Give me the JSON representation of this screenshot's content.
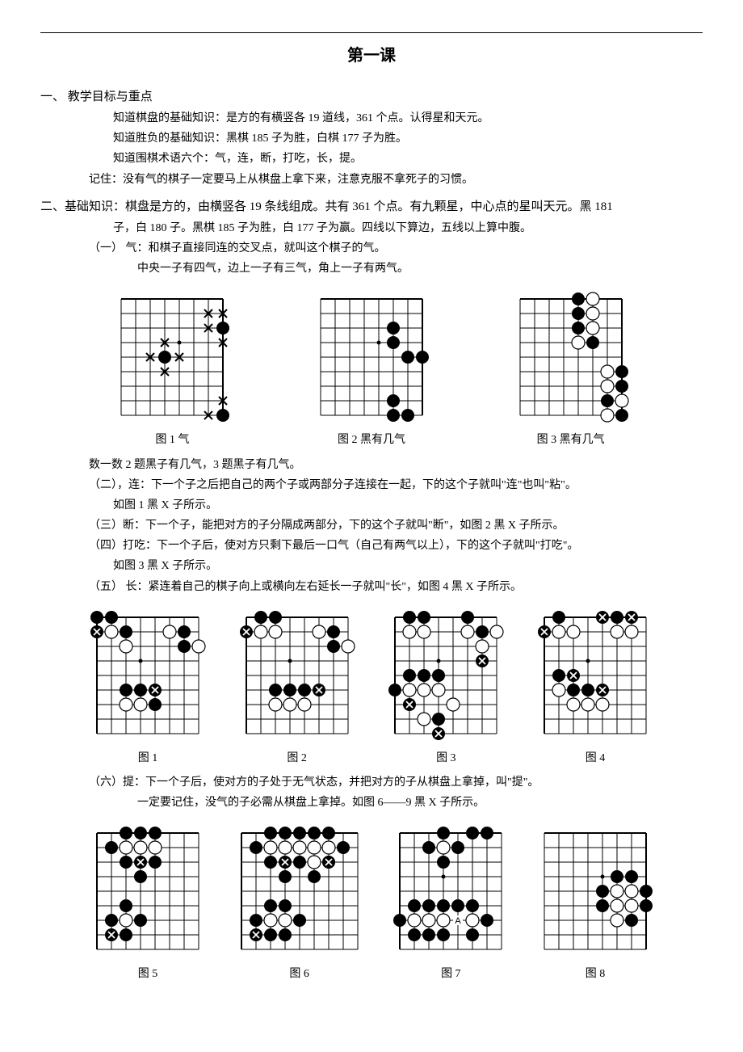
{
  "title": "第一课",
  "sec1": {
    "heading": "一、 教学目标与重点",
    "lines": [
      "知道棋盘的基础知识：是方的有横竖各 19 道线，361 个点。认得星和天元。",
      "知道胜负的基础知识：黑棋 185 子为胜，白棋 177 子为胜。",
      "知道围棋术语六个：气，连，断，打吃，长，提。",
      "记住：没有气的棋子一定要马上从棋盘上拿下来，注意克服不拿死子的习惯。"
    ]
  },
  "sec2": {
    "heading": "二、基础知识：棋盘是方的，由横竖各 19 条线组成。共有 361 个点。有九颗星，中心点的星叫天元。黑 181",
    "heading_cont": "子，白 180 子。黑棋 185 子为胜，白 177 子为赢。四线以下算边，五线以上算中腹。",
    "items": {
      "i1": "（一） 气：和棋子直接同连的交叉点，就叫这个棋子的气。",
      "i1b": "中央一子有四气，边上一子有三气，角上一子有两气。",
      "note1": "数一数 2 题黑子有几气，3 题黑子有几气。",
      "i2": "（二），连：下一个子之后把自己的两个子或两部分子连接在一起，下的这个子就叫\"连\"也叫\"粘\"。",
      "i2b": "如图 1 黑 X 子所示。",
      "i3": "（三）断：下一个子，能把对方的子分隔成两部分，下的这个子就叫\"断\"，如图 2 黑 X 子所示。",
      "i4": "（四）打吃：下一个子后，使对方只剩下最后一口气（自己有两气以上），下的这个子就叫\"打吃\"。",
      "i4b": "如图 3 黑 X 子所示。",
      "i5": "（五） 长：紧连着自己的棋子向上或横向左右延长一子就叫\"长\"，如图 4 黑 X 子所示。",
      "i6": "（六）提：下一个子后，使对方的子处于无气状态，并把对方的子从棋盘上拿掉，叫\"提\"。",
      "i6b": "一定要记住，没气的子必需从棋盘上拿掉。如图 6——9 黑 X 子所示。"
    }
  },
  "row1_captions": [
    "图 1 气",
    "图 2 黑有几气",
    "图 3 黑有几气"
  ],
  "row2_captions": [
    "图 1",
    "图 2",
    "图 3",
    "图 4"
  ],
  "row3_captions": [
    "图 5",
    "图 6",
    "图 7",
    "图 8"
  ],
  "boards": {
    "cell": 18,
    "stone_r": 8,
    "row1": [
      {
        "cols": 8,
        "rows": 9,
        "topEdge": true,
        "rightEdge": true,
        "star": [
          [
            4,
            3
          ]
        ],
        "black": [
          [
            7,
            2
          ],
          [
            3,
            4
          ],
          [
            7,
            8
          ]
        ],
        "white": [],
        "x": [
          [
            6,
            1
          ],
          [
            7,
            1
          ],
          [
            6,
            2
          ],
          [
            2,
            4
          ],
          [
            4,
            4
          ],
          [
            3,
            3
          ],
          [
            7,
            3
          ],
          [
            3,
            5
          ],
          [
            6,
            8
          ],
          [
            7,
            7
          ]
        ],
        "label": []
      },
      {
        "cols": 8,
        "rows": 9,
        "topEdge": true,
        "rightEdge": true,
        "star": [
          [
            4,
            3
          ]
        ],
        "black": [
          [
            5,
            2
          ],
          [
            5,
            3
          ],
          [
            6,
            4
          ],
          [
            7,
            4
          ],
          [
            5,
            8
          ],
          [
            6,
            8
          ],
          [
            5,
            7
          ]
        ],
        "white": [],
        "x": [],
        "label": []
      },
      {
        "cols": 8,
        "rows": 9,
        "topEdge": true,
        "rightEdge": true,
        "star": [
          [
            4,
            3
          ]
        ],
        "black": [
          [
            4,
            0
          ],
          [
            4,
            1
          ],
          [
            4,
            2
          ],
          [
            5,
            3
          ],
          [
            7,
            5
          ],
          [
            7,
            6
          ],
          [
            6,
            7
          ],
          [
            7,
            8
          ]
        ],
        "white": [
          [
            5,
            0
          ],
          [
            5,
            1
          ],
          [
            5,
            2
          ],
          [
            4,
            3
          ],
          [
            6,
            5
          ],
          [
            6,
            6
          ],
          [
            7,
            7
          ],
          [
            6,
            8
          ]
        ],
        "x": [],
        "label": []
      }
    ],
    "row2": [
      {
        "cols": 8,
        "rows": 9,
        "topEdge": true,
        "leftEdge": true,
        "star": [
          [
            3,
            3
          ]
        ],
        "black": [
          [
            0,
            0
          ],
          [
            1,
            0
          ],
          [
            2,
            1
          ],
          [
            6,
            1
          ],
          [
            6,
            2
          ],
          [
            2,
            5
          ],
          [
            3,
            5
          ],
          [
            4,
            6
          ]
        ],
        "white": [
          [
            1,
            1
          ],
          [
            5,
            1
          ],
          [
            2,
            2
          ],
          [
            7,
            2
          ],
          [
            2,
            6
          ],
          [
            3,
            6
          ]
        ],
        "bx": [
          [
            0,
            1
          ],
          [
            4,
            5
          ]
        ],
        "label": []
      },
      {
        "cols": 8,
        "rows": 9,
        "topEdge": true,
        "leftEdge": true,
        "star": [
          [
            3,
            3
          ]
        ],
        "black": [
          [
            1,
            0
          ],
          [
            2,
            0
          ],
          [
            6,
            1
          ],
          [
            6,
            2
          ],
          [
            2,
            5
          ],
          [
            3,
            5
          ],
          [
            4,
            5
          ]
        ],
        "white": [
          [
            1,
            1
          ],
          [
            2,
            1
          ],
          [
            5,
            1
          ],
          [
            7,
            2
          ],
          [
            2,
            6
          ],
          [
            3,
            6
          ],
          [
            4,
            6
          ]
        ],
        "bx": [
          [
            0,
            1
          ],
          [
            5,
            5
          ]
        ],
        "label": []
      },
      {
        "cols": 8,
        "rows": 9,
        "topEdge": true,
        "leftEdge": true,
        "star": [
          [
            3,
            3
          ]
        ],
        "black": [
          [
            1,
            0
          ],
          [
            2,
            0
          ],
          [
            5,
            0
          ],
          [
            6,
            1
          ],
          [
            1,
            4
          ],
          [
            2,
            4
          ],
          [
            3,
            4
          ],
          [
            0,
            5
          ],
          [
            3,
            7
          ]
        ],
        "white": [
          [
            1,
            1
          ],
          [
            2,
            1
          ],
          [
            5,
            1
          ],
          [
            7,
            1
          ],
          [
            6,
            2
          ],
          [
            1,
            5
          ],
          [
            2,
            5
          ],
          [
            3,
            5
          ],
          [
            4,
            6
          ],
          [
            2,
            7
          ]
        ],
        "bx": [
          [
            6,
            3
          ],
          [
            1,
            6
          ],
          [
            3,
            8
          ]
        ],
        "label": []
      },
      {
        "cols": 8,
        "rows": 9,
        "topEdge": true,
        "leftEdge": true,
        "star": [
          [
            3,
            3
          ]
        ],
        "black": [
          [
            1,
            0
          ],
          [
            5,
            0
          ],
          [
            1,
            4
          ],
          [
            2,
            5
          ],
          [
            3,
            5
          ]
        ],
        "white": [
          [
            1,
            1
          ],
          [
            2,
            1
          ],
          [
            5,
            1
          ],
          [
            6,
            1
          ],
          [
            1,
            5
          ],
          [
            2,
            6
          ],
          [
            3,
            6
          ],
          [
            4,
            6
          ]
        ],
        "bx": [
          [
            4,
            0
          ],
          [
            6,
            0
          ],
          [
            0,
            1
          ],
          [
            2,
            4
          ],
          [
            4,
            5
          ]
        ],
        "label": []
      }
    ],
    "row3": [
      {
        "cols": 8,
        "rows": 9,
        "topEdge": true,
        "leftEdge": true,
        "star": [
          [
            3,
            3
          ]
        ],
        "black": [
          [
            2,
            0
          ],
          [
            3,
            0
          ],
          [
            4,
            0
          ],
          [
            1,
            1
          ],
          [
            2,
            2
          ],
          [
            4,
            2
          ],
          [
            3,
            3
          ],
          [
            1,
            6
          ],
          [
            2,
            5
          ],
          [
            3,
            6
          ],
          [
            2,
            7
          ]
        ],
        "white": [
          [
            2,
            1
          ],
          [
            3,
            1
          ],
          [
            4,
            1
          ],
          [
            2,
            6
          ]
        ],
        "bx": [
          [
            3,
            2
          ],
          [
            1,
            7
          ]
        ],
        "label": []
      },
      {
        "cols": 9,
        "rows": 9,
        "topEdge": true,
        "leftEdge": true,
        "star": [
          [
            3,
            3
          ]
        ],
        "black": [
          [
            2,
            0
          ],
          [
            3,
            0
          ],
          [
            4,
            0
          ],
          [
            5,
            0
          ],
          [
            6,
            0
          ],
          [
            1,
            1
          ],
          [
            2,
            2
          ],
          [
            4,
            2
          ],
          [
            6,
            2
          ],
          [
            7,
            1
          ],
          [
            3,
            3
          ],
          [
            5,
            3
          ],
          [
            1,
            6
          ],
          [
            2,
            5
          ],
          [
            3,
            5
          ],
          [
            4,
            6
          ],
          [
            3,
            7
          ],
          [
            2,
            7
          ]
        ],
        "white": [
          [
            2,
            1
          ],
          [
            3,
            1
          ],
          [
            4,
            1
          ],
          [
            5,
            1
          ],
          [
            6,
            1
          ],
          [
            5,
            2
          ],
          [
            2,
            6
          ],
          [
            3,
            6
          ]
        ],
        "bx": [
          [
            3,
            2
          ],
          [
            6,
            2
          ],
          [
            1,
            7
          ]
        ],
        "label": []
      },
      {
        "cols": 8,
        "rows": 9,
        "topEdge": true,
        "leftEdge": true,
        "star": [
          [
            3,
            3
          ]
        ],
        "black": [
          [
            3,
            0
          ],
          [
            5,
            0
          ],
          [
            6,
            0
          ],
          [
            2,
            1
          ],
          [
            4,
            1
          ],
          [
            3,
            2
          ],
          [
            1,
            5
          ],
          [
            2,
            5
          ],
          [
            3,
            5
          ],
          [
            4,
            5
          ],
          [
            5,
            5
          ],
          [
            0,
            6
          ],
          [
            6,
            6
          ],
          [
            1,
            7
          ],
          [
            2,
            7
          ],
          [
            3,
            7
          ],
          [
            5,
            7
          ]
        ],
        "white": [
          [
            3,
            1
          ],
          [
            1,
            6
          ],
          [
            2,
            6
          ],
          [
            3,
            6
          ],
          [
            5,
            6
          ]
        ],
        "bx": [],
        "label": [
          [
            4,
            6,
            "A"
          ]
        ]
      },
      {
        "cols": 8,
        "rows": 9,
        "topEdge": true,
        "rightEdge": true,
        "star": [
          [
            4,
            3
          ]
        ],
        "black": [
          [
            5,
            3
          ],
          [
            6,
            3
          ],
          [
            4,
            4
          ],
          [
            7,
            4
          ],
          [
            4,
            5
          ],
          [
            6,
            6
          ],
          [
            7,
            5
          ]
        ],
        "white": [
          [
            5,
            4
          ],
          [
            6,
            4
          ],
          [
            5,
            5
          ],
          [
            6,
            5
          ],
          [
            5,
            6
          ]
        ],
        "bx": [],
        "label": []
      }
    ]
  }
}
